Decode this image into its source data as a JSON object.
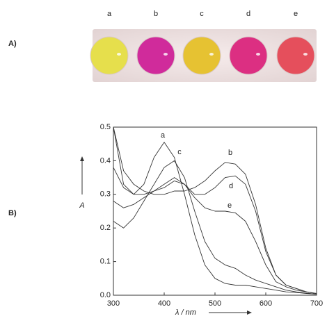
{
  "panel_a": {
    "label": "A)",
    "wells": [
      {
        "label": "a",
        "color": "#e6df4c"
      },
      {
        "label": "b",
        "color": "#d02b9b"
      },
      {
        "label": "c",
        "color": "#e6c232"
      },
      {
        "label": "d",
        "color": "#dc2f82"
      },
      {
        "label": "e",
        "color": "#e54f5c"
      }
    ]
  },
  "chart_data": {
    "type": "line",
    "panel_label": "B)",
    "xlabel": "λ / nm",
    "ylabel": "A",
    "x": [
      300,
      320,
      340,
      360,
      380,
      400,
      420,
      440,
      460,
      480,
      500,
      520,
      540,
      560,
      580,
      600,
      620,
      640,
      660,
      680,
      700
    ],
    "series": [
      {
        "name": "a",
        "color": "#333333",
        "values": [
          0.5,
          0.33,
          0.3,
          0.33,
          0.41,
          0.455,
          0.41,
          0.3,
          0.18,
          0.09,
          0.05,
          0.035,
          0.03,
          0.03,
          0.025,
          0.02,
          0.015,
          0.01,
          0.008,
          0.005,
          0.003
        ]
      },
      {
        "name": "b",
        "color": "#333333",
        "values": [
          0.5,
          0.37,
          0.33,
          0.31,
          0.3,
          0.3,
          0.31,
          0.31,
          0.32,
          0.34,
          0.37,
          0.395,
          0.39,
          0.36,
          0.27,
          0.14,
          0.06,
          0.03,
          0.02,
          0.01,
          0.005
        ]
      },
      {
        "name": "c",
        "color": "#333333",
        "values": [
          0.22,
          0.2,
          0.23,
          0.28,
          0.33,
          0.38,
          0.4,
          0.35,
          0.25,
          0.16,
          0.11,
          0.09,
          0.08,
          0.06,
          0.045,
          0.035,
          0.025,
          0.015,
          0.01,
          0.006,
          0.003
        ]
      },
      {
        "name": "d",
        "color": "#333333",
        "values": [
          0.38,
          0.32,
          0.3,
          0.3,
          0.31,
          0.32,
          0.34,
          0.33,
          0.3,
          0.3,
          0.32,
          0.35,
          0.355,
          0.33,
          0.25,
          0.13,
          0.06,
          0.03,
          0.02,
          0.01,
          0.005
        ]
      },
      {
        "name": "e",
        "color": "#333333",
        "values": [
          0.28,
          0.26,
          0.27,
          0.29,
          0.31,
          0.33,
          0.35,
          0.33,
          0.29,
          0.26,
          0.25,
          0.25,
          0.245,
          0.22,
          0.16,
          0.09,
          0.04,
          0.025,
          0.015,
          0.01,
          0.005
        ]
      }
    ],
    "xlim": [
      300,
      700
    ],
    "xticks": [
      300,
      400,
      500,
      600,
      700
    ],
    "ylim": [
      0,
      0.5
    ],
    "yticks": [
      {
        "value": 0,
        "label": "0.0"
      },
      0.1,
      0.2,
      0.3,
      0.4,
      0.5
    ]
  }
}
